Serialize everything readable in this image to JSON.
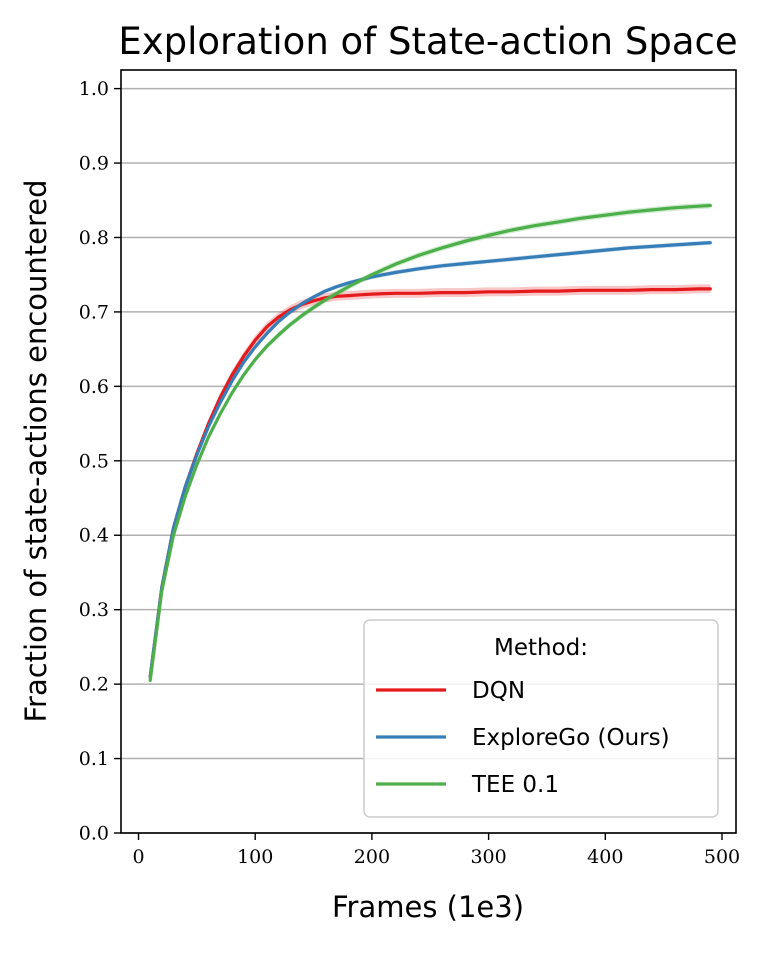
{
  "chart_data": {
    "type": "line",
    "title": "Exploration of State-action Space",
    "xlabel": "Frames (1e3)",
    "ylabel": "Fraction of state-actions encountered",
    "xlim": [
      -15,
      512
    ],
    "ylim": [
      0.0,
      1.025
    ],
    "xticks": [
      0,
      100,
      200,
      300,
      400,
      500
    ],
    "yticks": [
      0.0,
      0.1,
      0.2,
      0.3,
      0.4,
      0.5,
      0.6,
      0.7,
      0.8,
      0.9,
      1.0
    ],
    "grid": "horizontal",
    "legend": {
      "title": "Method:",
      "position": "bottom-right"
    },
    "x": [
      10,
      20,
      30,
      40,
      50,
      60,
      70,
      80,
      90,
      100,
      110,
      120,
      130,
      140,
      150,
      160,
      170,
      180,
      190,
      200,
      220,
      240,
      260,
      280,
      300,
      320,
      340,
      360,
      380,
      400,
      420,
      440,
      460,
      480,
      490
    ],
    "series": [
      {
        "name": "DQN",
        "color": "#e41a1c",
        "band": 0.006,
        "values": [
          0.21,
          0.33,
          0.41,
          0.465,
          0.51,
          0.55,
          0.585,
          0.615,
          0.64,
          0.662,
          0.68,
          0.693,
          0.703,
          0.71,
          0.715,
          0.719,
          0.721,
          0.722,
          0.723,
          0.724,
          0.725,
          0.725,
          0.726,
          0.726,
          0.727,
          0.727,
          0.728,
          0.728,
          0.729,
          0.729,
          0.729,
          0.73,
          0.73,
          0.731,
          0.731
        ]
      },
      {
        "name": "ExploreGo (Ours)",
        "color": "#377eb8",
        "band": 0.003,
        "values": [
          0.21,
          0.33,
          0.41,
          0.465,
          0.508,
          0.546,
          0.578,
          0.607,
          0.632,
          0.653,
          0.671,
          0.687,
          0.7,
          0.711,
          0.72,
          0.728,
          0.734,
          0.739,
          0.743,
          0.747,
          0.753,
          0.758,
          0.762,
          0.765,
          0.768,
          0.771,
          0.774,
          0.777,
          0.78,
          0.783,
          0.786,
          0.788,
          0.79,
          0.792,
          0.793
        ]
      },
      {
        "name": "TEE 0.1",
        "color": "#4daf4a",
        "band": 0.004,
        "values": [
          0.205,
          0.325,
          0.4,
          0.452,
          0.495,
          0.532,
          0.563,
          0.591,
          0.615,
          0.636,
          0.654,
          0.669,
          0.683,
          0.695,
          0.706,
          0.716,
          0.725,
          0.734,
          0.742,
          0.75,
          0.764,
          0.776,
          0.786,
          0.795,
          0.803,
          0.81,
          0.816,
          0.821,
          0.826,
          0.83,
          0.834,
          0.837,
          0.84,
          0.842,
          0.843
        ]
      }
    ]
  }
}
